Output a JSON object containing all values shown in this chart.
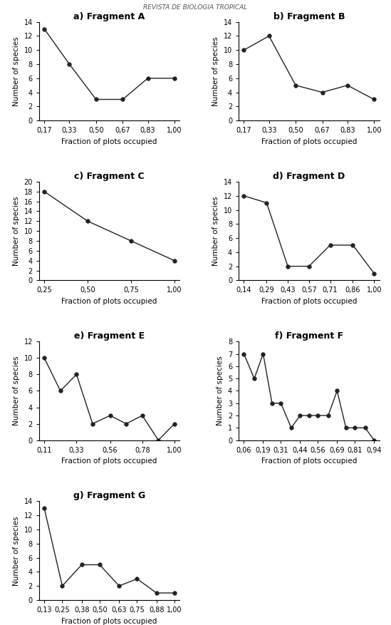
{
  "fragments": [
    {
      "title": "a) Fragment A",
      "x": [
        0.17,
        0.33,
        0.5,
        0.67,
        0.83,
        1.0
      ],
      "y": [
        13,
        8,
        3,
        3,
        6,
        6
      ],
      "xticks": [
        0.17,
        0.33,
        0.5,
        0.67,
        0.83,
        1.0
      ],
      "xtick_labels": [
        "0,17",
        "0,33",
        "0,50",
        "0,67",
        "0,83",
        "1,00"
      ],
      "ylim": [
        0,
        14
      ],
      "yticks": [
        0,
        2,
        4,
        6,
        8,
        10,
        12,
        14
      ]
    },
    {
      "title": "b) Fragment B",
      "x": [
        0.17,
        0.33,
        0.5,
        0.67,
        0.83,
        1.0
      ],
      "y": [
        10,
        12,
        5,
        4,
        5,
        3
      ],
      "xticks": [
        0.17,
        0.33,
        0.5,
        0.67,
        0.83,
        1.0
      ],
      "xtick_labels": [
        "0,17",
        "0,33",
        "0,50",
        "0,67",
        "0,83",
        "1,00"
      ],
      "ylim": [
        0,
        14
      ],
      "yticks": [
        0,
        2,
        4,
        6,
        8,
        10,
        12,
        14
      ]
    },
    {
      "title": "c) Fragment C",
      "x": [
        0.25,
        0.5,
        0.75,
        1.0
      ],
      "y": [
        18,
        12,
        8,
        4
      ],
      "xticks": [
        0.25,
        0.5,
        0.75,
        1.0
      ],
      "xtick_labels": [
        "0,25",
        "0,50",
        "0,75",
        "1,00"
      ],
      "ylim": [
        0,
        20
      ],
      "yticks": [
        0,
        2,
        4,
        6,
        8,
        10,
        12,
        14,
        16,
        18,
        20
      ]
    },
    {
      "title": "d) Fragment D",
      "x": [
        0.14,
        0.29,
        0.43,
        0.57,
        0.71,
        0.86,
        1.0
      ],
      "y": [
        12,
        11,
        2,
        2,
        5,
        5,
        1
      ],
      "xticks": [
        0.14,
        0.29,
        0.43,
        0.57,
        0.71,
        0.86,
        1.0
      ],
      "xtick_labels": [
        "0,14",
        "0,29",
        "0,43",
        "0,57",
        "0,71",
        "0,86",
        "1,00"
      ],
      "ylim": [
        0,
        14
      ],
      "yticks": [
        0,
        2,
        4,
        6,
        8,
        10,
        12,
        14
      ]
    },
    {
      "title": "e) Fragment E",
      "x": [
        0.11,
        0.22,
        0.33,
        0.44,
        0.56,
        0.67,
        0.78,
        0.89,
        1.0
      ],
      "y": [
        10,
        6,
        8,
        2,
        3,
        2,
        3,
        0,
        2
      ],
      "xticks": [
        0.11,
        0.33,
        0.56,
        0.78,
        1.0
      ],
      "xtick_labels": [
        "0,11",
        "0,33",
        "0,56",
        "0,78",
        "1,00"
      ],
      "ylim": [
        0,
        12
      ],
      "yticks": [
        0,
        2,
        4,
        6,
        8,
        10,
        12
      ]
    },
    {
      "title": "f) Fragment F",
      "x": [
        0.06,
        0.13,
        0.19,
        0.25,
        0.31,
        0.38,
        0.44,
        0.5,
        0.56,
        0.63,
        0.69,
        0.75,
        0.81,
        0.88,
        0.94
      ],
      "y": [
        7,
        5,
        7,
        3,
        3,
        1,
        2,
        2,
        2,
        2,
        4,
        1,
        1,
        1,
        0
      ],
      "xticks": [
        0.06,
        0.19,
        0.31,
        0.44,
        0.56,
        0.69,
        0.81,
        0.94
      ],
      "xtick_labels": [
        "0,06",
        "0,19",
        "0,31",
        "0,44",
        "0,56",
        "0,69",
        "0,81",
        "0,94"
      ],
      "ylim": [
        0,
        8
      ],
      "yticks": [
        0,
        1,
        2,
        3,
        4,
        5,
        6,
        7,
        8
      ]
    },
    {
      "title": "g) Fragment G",
      "x": [
        0.13,
        0.25,
        0.38,
        0.5,
        0.63,
        0.75,
        0.88,
        1.0
      ],
      "y": [
        13,
        2,
        5,
        5,
        2,
        3,
        1,
        1
      ],
      "xticks": [
        0.13,
        0.25,
        0.38,
        0.5,
        0.63,
        0.75,
        0.88,
        1.0
      ],
      "xtick_labels": [
        "0,13",
        "0,25",
        "0,38",
        "0,50",
        "0,63",
        "0,75",
        "0,88",
        "1,00"
      ],
      "ylim": [
        0,
        14
      ],
      "yticks": [
        0,
        2,
        4,
        6,
        8,
        10,
        12,
        14
      ]
    }
  ],
  "xlabel": "Fraction of plots occupied",
  "ylabel": "Number of species",
  "line_color": "#222222",
  "marker": "o",
  "marker_color": "#222222",
  "marker_size": 4,
  "line_width": 1.0,
  "title_fontsize": 9,
  "label_fontsize": 7.5,
  "tick_fontsize": 7,
  "header": "REVISTA DE BIOLOGIA TROPICAL"
}
